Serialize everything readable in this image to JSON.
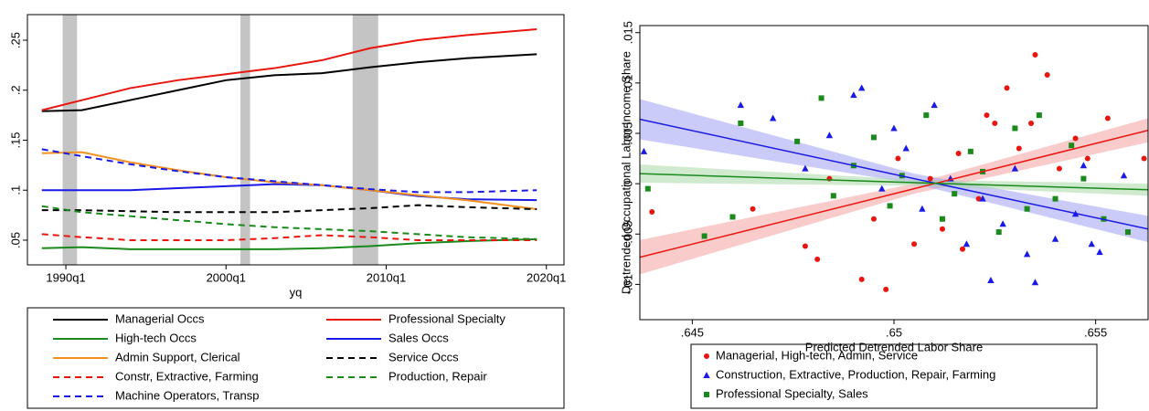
{
  "chart_data": [
    {
      "type": "line",
      "x_label": "yq",
      "x": [
        1988.5,
        1991,
        1994,
        1997,
        2000,
        2003,
        2006,
        2009,
        2012,
        2015,
        2019.4
      ],
      "xlim": [
        1987.6,
        2021.1
      ],
      "xticks": [
        {
          "value": 1990,
          "label": "1990q1"
        },
        {
          "value": 2000,
          "label": "2000q1"
        },
        {
          "value": 2010,
          "label": "2010q1"
        },
        {
          "value": 2020,
          "label": "2020q1"
        }
      ],
      "ylim": [
        0.0253,
        0.2756
      ],
      "yticks": [
        {
          "value": 0.05,
          "label": ".05"
        },
        {
          "value": 0.1,
          "label": ".1"
        },
        {
          "value": 0.15,
          "label": ".15"
        },
        {
          "value": 0.2,
          "label": ".2"
        },
        {
          "value": 0.25,
          "label": ".25"
        }
      ],
      "shaded_regions": [
        [
          1989.8,
          1990.7
        ],
        [
          2000.9,
          2001.5
        ],
        [
          2007.9,
          2009.5
        ]
      ],
      "shade_color": "#c4c4c4",
      "series": [
        {
          "name": "Managerial Occs",
          "color": "#000000",
          "dash": false,
          "values": [
            0.179,
            0.18,
            0.19,
            0.2,
            0.21,
            0.215,
            0.217,
            0.223,
            0.228,
            0.232,
            0.236
          ]
        },
        {
          "name": "Professional Specialty",
          "color": "#e8160f",
          "dash": false,
          "values": [
            0.18,
            0.19,
            0.202,
            0.21,
            0.216,
            0.222,
            0.23,
            0.242,
            0.25,
            0.255,
            0.261
          ]
        },
        {
          "name": "High-tech Occs",
          "color": "#1a8a1a",
          "dash": false,
          "values": [
            0.042,
            0.043,
            0.041,
            0.041,
            0.041,
            0.041,
            0.042,
            0.044,
            0.047,
            0.049,
            0.051
          ]
        },
        {
          "name": "Sales Occs",
          "color": "#1a1ae6",
          "dash": false,
          "values": [
            0.1,
            0.1,
            0.1,
            0.102,
            0.104,
            0.106,
            0.105,
            0.1,
            0.094,
            0.091,
            0.09
          ]
        },
        {
          "name": "Admin Support, Clerical",
          "color": "#f5901e",
          "dash": false,
          "values": [
            0.137,
            0.138,
            0.128,
            0.12,
            0.113,
            0.108,
            0.105,
            0.1,
            0.095,
            0.09,
            0.081
          ]
        },
        {
          "name": "Service Occs",
          "color": "#000000",
          "dash": true,
          "values": [
            0.08,
            0.08,
            0.079,
            0.078,
            0.078,
            0.078,
            0.08,
            0.082,
            0.085,
            0.083,
            0.081
          ]
        },
        {
          "name": "Constr, Extractive, Farming",
          "color": "#e8160f",
          "dash": true,
          "values": [
            0.056,
            0.053,
            0.05,
            0.05,
            0.05,
            0.052,
            0.055,
            0.053,
            0.05,
            0.05,
            0.05
          ]
        },
        {
          "name": "Production, Repair",
          "color": "#1a8a1a",
          "dash": true,
          "values": [
            0.084,
            0.078,
            0.074,
            0.07,
            0.066,
            0.063,
            0.061,
            0.059,
            0.056,
            0.053,
            0.051
          ]
        },
        {
          "name": "Machine Operators, Transp",
          "color": "#1a1ae6",
          "dash": true,
          "values": [
            0.141,
            0.134,
            0.126,
            0.119,
            0.113,
            0.109,
            0.105,
            0.101,
            0.098,
            0.098,
            0.1
          ]
        }
      ]
    },
    {
      "type": "scatter",
      "x_label": "Predicted Detrended Labor Share",
      "y_label": "De-trended Occupational Labor Income Share",
      "xlim": [
        0.6437,
        0.6563
      ],
      "xticks": [
        {
          "value": 0.645,
          "label": ".645"
        },
        {
          "value": 0.65,
          "label": ".65"
        },
        {
          "value": 0.655,
          "label": ".655"
        }
      ],
      "ylim": [
        -0.0135,
        0.0157
      ],
      "yticks": [
        {
          "value": -0.01,
          "label": "-.01"
        },
        {
          "value": -0.005,
          "label": "-.005"
        },
        0,
        {
          "value": 0.005,
          "label": ".005"
        },
        {
          "value": 0.01,
          "label": ".01"
        },
        {
          "value": 0.015,
          "label": ".015"
        }
      ],
      "series": [
        {
          "name": "Managerial, High-tech, Admin, Service",
          "color": "#e8160f",
          "marker": "circle",
          "x": [
            0.644,
            0.6465,
            0.6478,
            0.6481,
            0.6484,
            0.6492,
            0.6495,
            0.6498,
            0.6501,
            0.6505,
            0.6509,
            0.6512,
            0.6516,
            0.6521,
            0.6525,
            0.6528,
            0.6531,
            0.6534,
            0.6535,
            0.6538,
            0.6541,
            0.6545,
            0.6548,
            0.6553,
            0.6562,
            0.6517,
            0.6523
          ],
          "values": [
            -0.0028,
            -0.0025,
            -0.0062,
            -0.0075,
            0.0005,
            -0.0095,
            -0.0035,
            -0.0105,
            0.0025,
            -0.006,
            0.0005,
            -0.0045,
            0.003,
            -0.0015,
            0.006,
            0.0095,
            0.0035,
            0.006,
            0.0128,
            0.0108,
            0.0015,
            0.0045,
            0.0025,
            0.0065,
            0.0025,
            -0.0065,
            0.0068
          ]
        },
        {
          "name": "Construction, Extractive, Production, Repair, Farming",
          "color": "#1a1ae6",
          "marker": "triangle",
          "x": [
            0.6438,
            0.6462,
            0.647,
            0.6478,
            0.6484,
            0.649,
            0.6492,
            0.6497,
            0.65,
            0.6503,
            0.6507,
            0.651,
            0.6514,
            0.6518,
            0.6522,
            0.6524,
            0.6527,
            0.653,
            0.6533,
            0.6535,
            0.654,
            0.6545,
            0.6549,
            0.6551,
            0.6557,
            0.6547
          ],
          "values": [
            0.0032,
            0.0078,
            0.0065,
            0.0015,
            0.0048,
            0.0088,
            0.0095,
            -0.0005,
            0.0055,
            0.0035,
            -0.0025,
            0.0078,
            0.0005,
            -0.006,
            -0.0015,
            -0.0096,
            -0.004,
            0.0015,
            -0.007,
            -0.0098,
            -0.0055,
            -0.003,
            -0.006,
            -0.0068,
            0.0008,
            0.0018
          ]
        },
        {
          "name": "Professional Specialty, Sales",
          "color": "#1a8a1a",
          "marker": "square",
          "x": [
            0.6439,
            0.6453,
            0.646,
            0.6462,
            0.6476,
            0.6482,
            0.6485,
            0.649,
            0.6495,
            0.6499,
            0.6502,
            0.6508,
            0.6512,
            0.6515,
            0.6519,
            0.6522,
            0.6526,
            0.653,
            0.6533,
            0.6536,
            0.654,
            0.6544,
            0.6552,
            0.6558,
            0.6547
          ],
          "values": [
            -0.0005,
            -0.0052,
            -0.0033,
            0.006,
            0.0042,
            0.0085,
            -0.0012,
            0.0018,
            0.0046,
            -0.0022,
            0.0008,
            0.0068,
            -0.0035,
            -0.001,
            0.0032,
            0.0012,
            -0.0048,
            0.0055,
            -0.0025,
            0.0068,
            -0.0015,
            0.0038,
            -0.0035,
            -0.0048,
            0.0005
          ]
        }
      ],
      "fits": [
        {
          "color": "#e8160f",
          "band_color": "#f4a0a0",
          "x": [
            0.6437,
            0.6505,
            0.6563
          ],
          "values": [
            -0.0073,
            -0.0005,
            0.0053
          ],
          "lower": [
            -0.009,
            -0.001,
            0.0041
          ],
          "upper": [
            -0.0056,
            0,
            0.0065
          ]
        },
        {
          "color": "#1a1ae6",
          "band_color": "#a0a0f4",
          "x": [
            0.6437,
            0.6505,
            0.6563
          ],
          "values": [
            0.0064,
            0.0005,
            -0.0045
          ],
          "lower": [
            0.0044,
            0,
            -0.0058
          ],
          "upper": [
            0.0084,
            0.001,
            -0.0032
          ]
        },
        {
          "color": "#1a8a1a",
          "band_color": "#a8d8a8",
          "x": [
            0.6437,
            0.6505,
            0.6563
          ],
          "values": [
            0.001,
            0.0001,
            -0.0006
          ],
          "lower": [
            0.0001,
            -0.0002,
            -0.0012
          ],
          "upper": [
            0.0019,
            0.0004,
            0
          ]
        }
      ]
    }
  ]
}
